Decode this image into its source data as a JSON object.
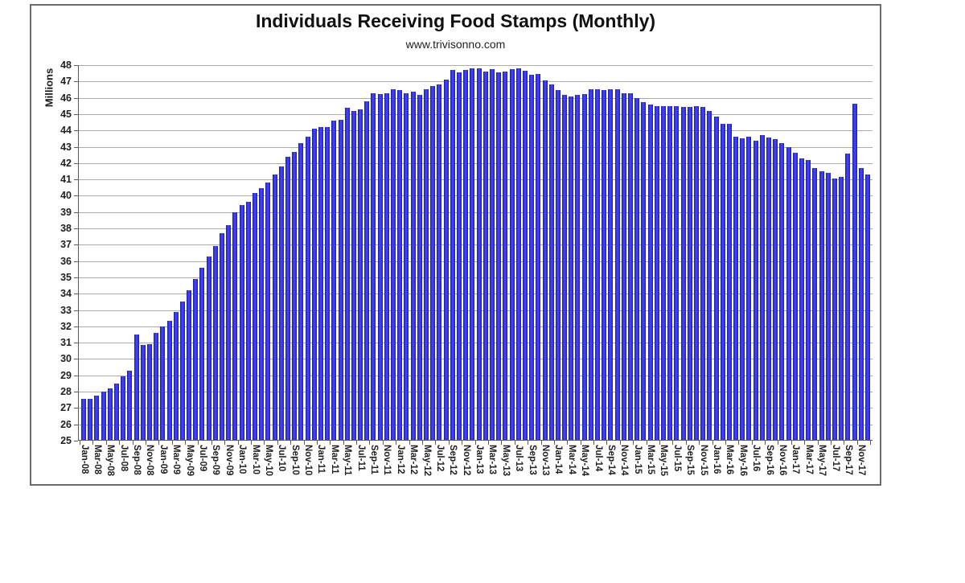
{
  "chart_data": {
    "type": "bar",
    "title": "Individuals Receiving Food Stamps (Monthly)",
    "subtitle": "www.trivisonno.com",
    "ylabel": "Millions",
    "ylim": [
      25,
      48
    ],
    "ytick_step": 1,
    "x_label_every": 2,
    "grid": "horizontal",
    "bar_color": "#3333e0",
    "categories": [
      "Jan-08",
      "Feb-08",
      "Mar-08",
      "Apr-08",
      "May-08",
      "Jun-08",
      "Jul-08",
      "Aug-08",
      "Sep-08",
      "Oct-08",
      "Nov-08",
      "Dec-08",
      "Jan-09",
      "Feb-09",
      "Mar-09",
      "Apr-09",
      "May-09",
      "Jun-09",
      "Jul-09",
      "Aug-09",
      "Sep-09",
      "Oct-09",
      "Nov-09",
      "Dec-09",
      "Jan-10",
      "Feb-10",
      "Mar-10",
      "Apr-10",
      "May-10",
      "Jun-10",
      "Jul-10",
      "Aug-10",
      "Sep-10",
      "Oct-10",
      "Nov-10",
      "Dec-10",
      "Jan-11",
      "Feb-11",
      "Mar-11",
      "Apr-11",
      "May-11",
      "Jun-11",
      "Jul-11",
      "Aug-11",
      "Sep-11",
      "Oct-11",
      "Nov-11",
      "Dec-11",
      "Jan-12",
      "Feb-12",
      "Mar-12",
      "Apr-12",
      "May-12",
      "Jun-12",
      "Jul-12",
      "Aug-12",
      "Sep-12",
      "Oct-12",
      "Nov-12",
      "Dec-12",
      "Jan-13",
      "Feb-13",
      "Mar-13",
      "Apr-13",
      "May-13",
      "Jun-13",
      "Jul-13",
      "Aug-13",
      "Sep-13",
      "Oct-13",
      "Nov-13",
      "Dec-13",
      "Jan-14",
      "Feb-14",
      "Mar-14",
      "Apr-14",
      "May-14",
      "Jun-14",
      "Jul-14",
      "Aug-14",
      "Sep-14",
      "Oct-14",
      "Nov-14",
      "Dec-14",
      "Jan-15",
      "Feb-15",
      "Mar-15",
      "Apr-15",
      "May-15",
      "Jun-15",
      "Jul-15",
      "Aug-15",
      "Sep-15",
      "Oct-15",
      "Nov-15",
      "Dec-15",
      "Jan-16",
      "Feb-16",
      "Mar-16",
      "Apr-16",
      "May-16",
      "Jun-16",
      "Jul-16",
      "Aug-16",
      "Sep-16",
      "Oct-16",
      "Nov-16",
      "Dec-16",
      "Jan-17",
      "Feb-17",
      "Mar-17",
      "Apr-17",
      "May-17",
      "Jun-17",
      "Jul-17",
      "Aug-17",
      "Sep-17",
      "Oct-17",
      "Nov-17",
      "Dec-17"
    ],
    "values": [
      27.55,
      27.55,
      27.75,
      28.0,
      28.2,
      28.5,
      28.95,
      29.3,
      31.5,
      30.85,
      30.9,
      31.6,
      32.0,
      32.35,
      32.9,
      33.5,
      34.2,
      34.9,
      35.6,
      36.3,
      36.9,
      37.7,
      38.2,
      39.0,
      39.45,
      39.65,
      40.15,
      40.45,
      40.8,
      41.3,
      41.8,
      42.4,
      42.7,
      43.2,
      43.6,
      44.1,
      44.2,
      44.2,
      44.6,
      44.65,
      45.4,
      45.2,
      45.3,
      45.8,
      46.3,
      46.25,
      46.3,
      46.5,
      46.45,
      46.3,
      46.4,
      46.2,
      46.5,
      46.7,
      46.8,
      47.1,
      47.7,
      47.55,
      47.7,
      47.8,
      47.8,
      47.6,
      47.75,
      47.55,
      47.6,
      47.75,
      47.8,
      47.65,
      47.4,
      47.45,
      47.05,
      46.8,
      46.45,
      46.2,
      46.1,
      46.2,
      46.25,
      46.5,
      46.5,
      46.45,
      46.5,
      46.5,
      46.3,
      46.3,
      46.0,
      45.75,
      45.6,
      45.5,
      45.5,
      45.5,
      45.5,
      45.45,
      45.45,
      45.5,
      45.45,
      45.2,
      44.85,
      44.4,
      44.4,
      43.6,
      43.5,
      43.6,
      43.35,
      43.7,
      43.55,
      43.45,
      43.2,
      43.0,
      42.65,
      42.3,
      42.2,
      41.7,
      41.5,
      41.4,
      41.05,
      41.15,
      42.6,
      45.65,
      41.7,
      41.3
    ]
  }
}
